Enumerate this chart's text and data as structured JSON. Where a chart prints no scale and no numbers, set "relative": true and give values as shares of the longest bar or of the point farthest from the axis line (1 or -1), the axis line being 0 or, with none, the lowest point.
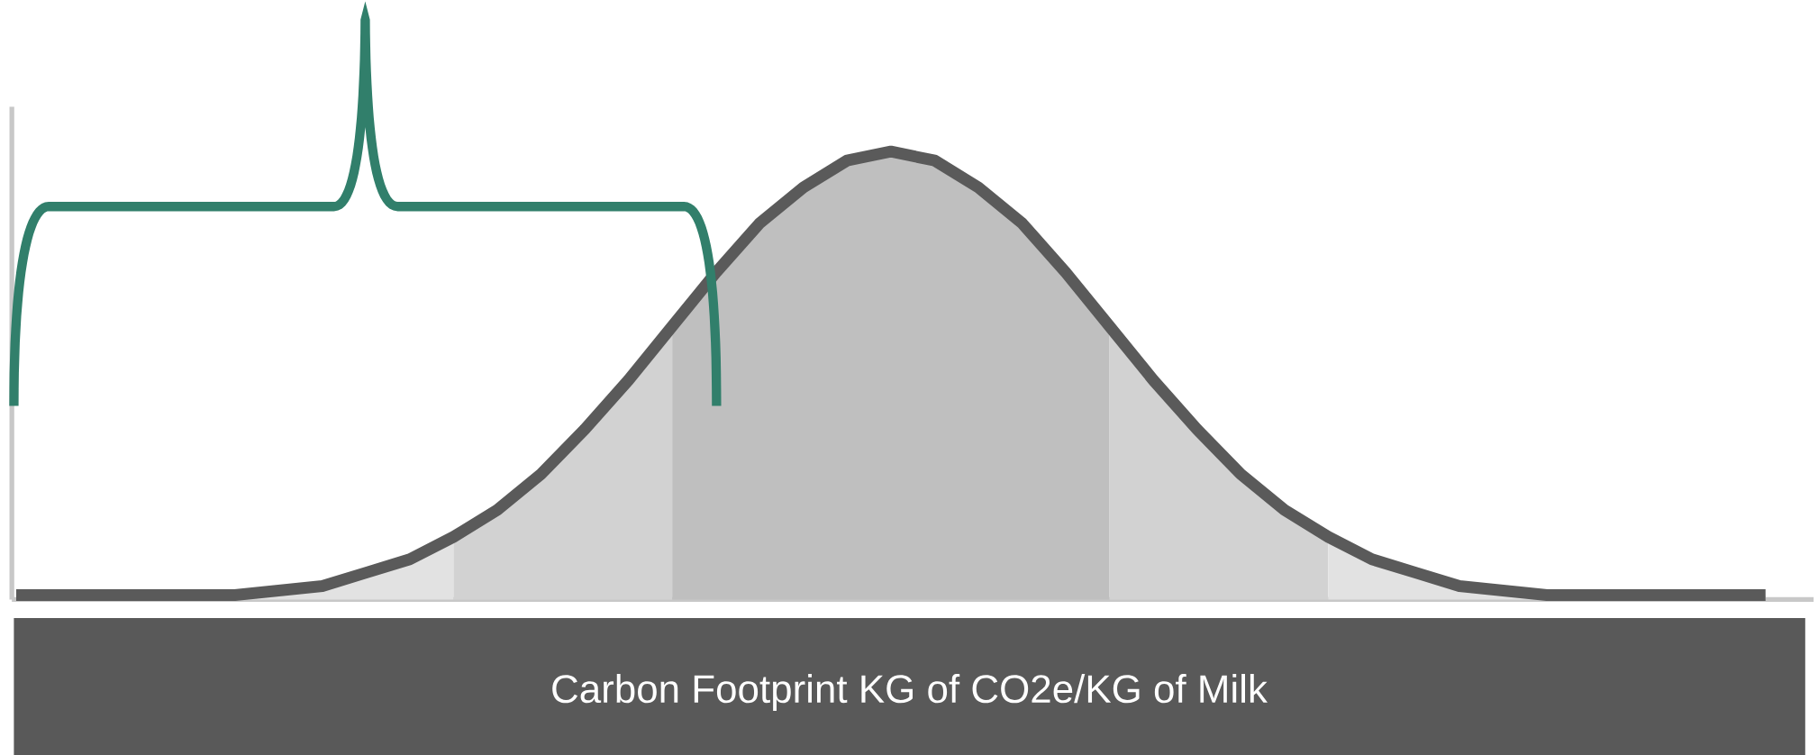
{
  "chart_data": {
    "type": "area",
    "relative": true,
    "xlabel": "Carbon Footprint KG of CO2e/KG of Milk",
    "categories": [
      null,
      null,
      null,
      null,
      null,
      null,
      null,
      null,
      null,
      null,
      null,
      null,
      null,
      null,
      null,
      null,
      null,
      null,
      null,
      null,
      null,
      null,
      null,
      null,
      null,
      null,
      null,
      null,
      null,
      null,
      null,
      null,
      null,
      null,
      null,
      null,
      null,
      null,
      null,
      null,
      null
    ],
    "series": [
      {
        "color": "#e2e2e2",
        "values": [
          0.01,
          0.01,
          0.01,
          0.01,
          0.01,
          0.01,
          0.02,
          0.03,
          0.06,
          0.09,
          0.14,
          null,
          null,
          null,
          null,
          null,
          null,
          null,
          null,
          null,
          null,
          null,
          null,
          null,
          null,
          null,
          null,
          null,
          null,
          null,
          null,
          null,
          null,
          null,
          null,
          null,
          null,
          null,
          null,
          null,
          null
        ]
      },
      {
        "color": "#d2d2d2",
        "values": [
          null,
          null,
          null,
          null,
          null,
          null,
          null,
          null,
          null,
          null,
          0.14,
          0.2,
          0.28,
          0.38,
          0.49,
          0.61,
          null,
          null,
          null,
          null,
          null,
          null,
          null,
          null,
          null,
          null,
          null,
          null,
          null,
          null,
          null,
          null,
          null,
          null,
          null,
          null,
          null,
          null,
          null,
          null,
          null
        ]
      },
      {
        "color": "#bfbfbf",
        "values": [
          null,
          null,
          null,
          null,
          null,
          null,
          null,
          null,
          null,
          null,
          null,
          null,
          null,
          null,
          null,
          0.61,
          0.73,
          0.84,
          0.92,
          0.98,
          1,
          0.98,
          0.92,
          0.84,
          0.73,
          0.61,
          null,
          null,
          null,
          null,
          null,
          null,
          null,
          null,
          null,
          null,
          null,
          null,
          null,
          null,
          null
        ]
      },
      {
        "color": "#d2d2d2",
        "values": [
          null,
          null,
          null,
          null,
          null,
          null,
          null,
          null,
          null,
          null,
          null,
          null,
          null,
          null,
          null,
          null,
          null,
          null,
          null,
          null,
          null,
          null,
          null,
          null,
          null,
          0.61,
          0.49,
          0.38,
          0.28,
          0.2,
          0.14,
          null,
          null,
          null,
          null,
          null,
          null,
          null,
          null,
          null,
          null
        ]
      },
      {
        "color": "#e2e2e2",
        "values": [
          null,
          null,
          null,
          null,
          null,
          null,
          null,
          null,
          null,
          null,
          null,
          null,
          null,
          null,
          null,
          null,
          null,
          null,
          null,
          null,
          null,
          null,
          null,
          null,
          null,
          null,
          null,
          null,
          null,
          null,
          0.14,
          0.09,
          0.06,
          0.03,
          0.02,
          0.01,
          0.01,
          0.01,
          0.01,
          0.01,
          0.01
        ]
      },
      {
        "type": "line",
        "color": "#5a5a5a",
        "values": [
          0.01,
          0.01,
          0.01,
          0.01,
          0.01,
          0.01,
          0.02,
          0.03,
          0.06,
          0.09,
          0.14,
          0.2,
          0.28,
          0.38,
          0.49,
          0.61,
          0.73,
          0.84,
          0.92,
          0.98,
          1,
          0.98,
          0.92,
          0.84,
          0.73,
          0.61,
          0.49,
          0.38,
          0.28,
          0.2,
          0.14,
          0.09,
          0.06,
          0.03,
          0.02,
          0.01,
          0.01,
          0.01,
          0.01,
          0.01,
          0.01
        ]
      }
    ]
  }
}
